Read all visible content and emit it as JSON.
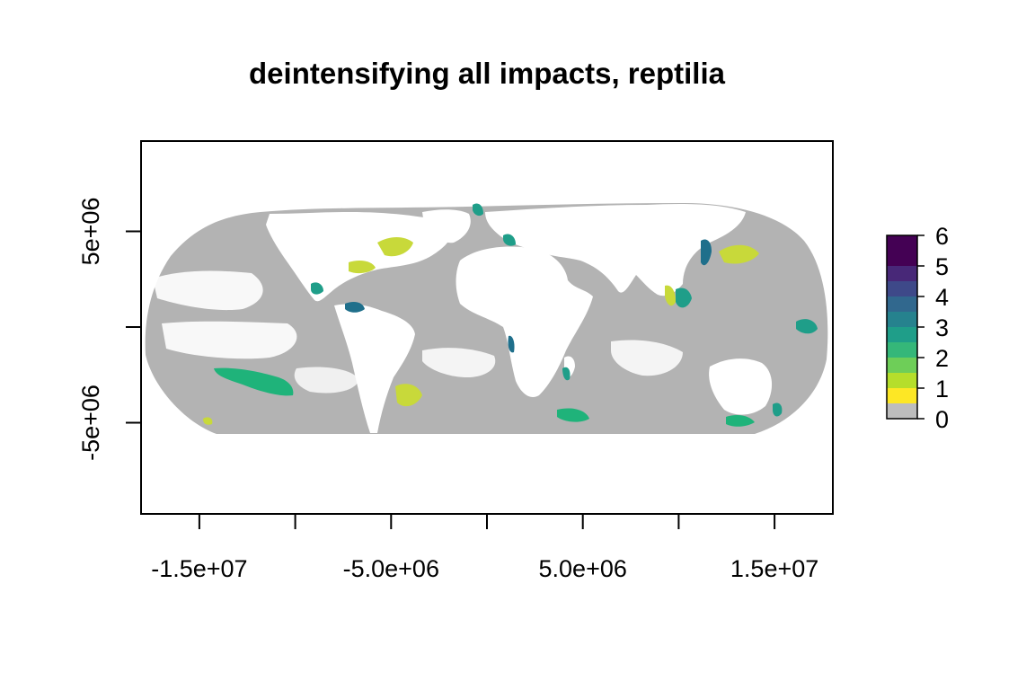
{
  "title": "deintensifying all impacts, reptilia",
  "chart_data": {
    "type": "heatmap",
    "title": "deintensifying all impacts, reptilia",
    "xlabel": "",
    "ylabel": "",
    "projection": "equal-area world projection (global raster)",
    "x_ticks": [
      -15000000,
      -10000000,
      -5000000,
      0,
      5000000,
      10000000,
      15000000
    ],
    "x_tick_labels": [
      "-1.5e+07",
      "",
      "-5.0e+06",
      "",
      "5.0e+06",
      "",
      "1.5e+07"
    ],
    "y_ticks": [
      -5000000,
      0,
      5000000
    ],
    "y_tick_labels": [
      "-5e+06",
      "",
      "5e+06"
    ],
    "xlim": [
      -18000000,
      18000000
    ],
    "ylim": [
      -9800000,
      9800000
    ],
    "legend": {
      "placement": "right",
      "min": 0,
      "max": 6,
      "tick_labels": [
        "0",
        "1",
        "2",
        "3",
        "4",
        "5",
        "6"
      ],
      "colors": [
        {
          "from": 0,
          "to": 0.5,
          "color": "#bdbdbd"
        },
        {
          "from": 0.5,
          "to": 1.0,
          "color": "#fde725"
        },
        {
          "from": 1.0,
          "to": 1.5,
          "color": "#b5de2b"
        },
        {
          "from": 1.5,
          "to": 2.0,
          "color": "#6ece58"
        },
        {
          "from": 2.0,
          "to": 2.5,
          "color": "#35b779"
        },
        {
          "from": 2.5,
          "to": 3.0,
          "color": "#1f9e89"
        },
        {
          "from": 3.0,
          "to": 3.5,
          "color": "#26828e"
        },
        {
          "from": 3.5,
          "to": 4.0,
          "color": "#31688e"
        },
        {
          "from": 4.0,
          "to": 4.5,
          "color": "#3e4989"
        },
        {
          "from": 4.5,
          "to": 5.0,
          "color": "#482878"
        },
        {
          "from": 5.0,
          "to": 6.0,
          "color": "#440154"
        }
      ]
    },
    "colors": {
      "background_ocean": "#b3b3b3",
      "land": "#ffffff",
      "low": "#c8d93a",
      "mid": "#1fb37a",
      "high": "#1f6f8b"
    }
  }
}
